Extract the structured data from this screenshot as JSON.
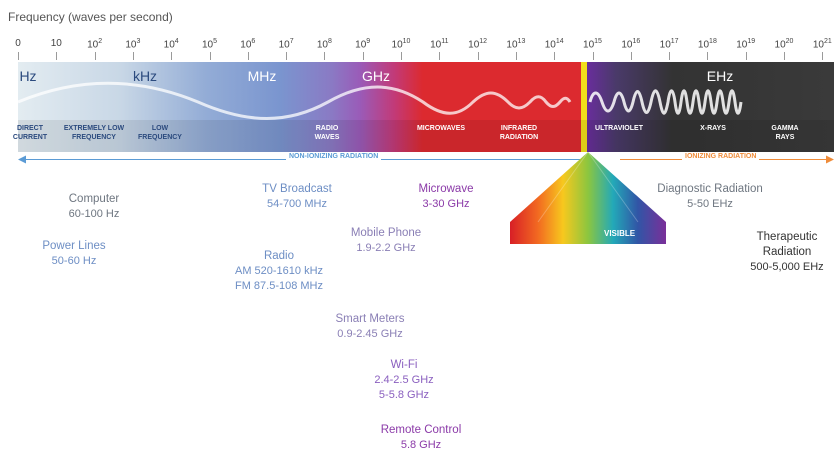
{
  "header": {
    "title": "Frequency (waves per second)"
  },
  "ticks": [
    {
      "base": "0",
      "exp": ""
    },
    {
      "base": "10",
      "exp": ""
    },
    {
      "base": "10",
      "exp": "2"
    },
    {
      "base": "10",
      "exp": "3"
    },
    {
      "base": "10",
      "exp": "4"
    },
    {
      "base": "10",
      "exp": "5"
    },
    {
      "base": "10",
      "exp": "6"
    },
    {
      "base": "10",
      "exp": "7"
    },
    {
      "base": "10",
      "exp": "8"
    },
    {
      "base": "10",
      "exp": "9"
    },
    {
      "base": "10",
      "exp": "10"
    },
    {
      "base": "10",
      "exp": "11"
    },
    {
      "base": "10",
      "exp": "12"
    },
    {
      "base": "10",
      "exp": "13"
    },
    {
      "base": "10",
      "exp": "14"
    },
    {
      "base": "10",
      "exp": "15"
    },
    {
      "base": "10",
      "exp": "16"
    },
    {
      "base": "10",
      "exp": "17"
    },
    {
      "base": "10",
      "exp": "18"
    },
    {
      "base": "10",
      "exp": "19"
    },
    {
      "base": "10",
      "exp": "20"
    },
    {
      "base": "10",
      "exp": "21"
    }
  ],
  "units": [
    "Hz",
    "kHz",
    "MHz",
    "GHz",
    "EHz"
  ],
  "band_labels": {
    "direct_current": [
      "DIRECT",
      "CURRENT"
    ],
    "extremely_low": [
      "EXTREMELY LOW",
      "FREQUENCY"
    ],
    "low_frequency": [
      "LOW",
      "FREQUENCY"
    ],
    "radio_waves": [
      "RADIO",
      "WAVES"
    ],
    "microwaves": [
      "MICROWAVES"
    ],
    "infrared": [
      "INFRARED",
      "RADIATION"
    ],
    "ultraviolet": [
      "ULTRAVIOLET"
    ],
    "xrays": [
      "X-RAYS"
    ],
    "gamma": [
      "GAMMA",
      "RAYS"
    ],
    "visible": "VISIBLE"
  },
  "radiation": {
    "non_ionizing": "NON-IONIZING RADIATION",
    "ionizing": "IONIZING RADIATION"
  },
  "colors": {
    "nonion_band_start": "#e4edf2",
    "nonion_band_mid": "#6f8fc6",
    "microwave_purple": "#8a4fb3",
    "infrared_red": "#d8323f",
    "ionizing_dark": "#2e2e2e",
    "divider_yellow": "#f4e21c",
    "nonion_line": "#5b9bd5",
    "ion_line": "#ef8c3a",
    "blue_text": "#6d8ec4",
    "gray_text": "#6e7680",
    "purple_text": "#8b3aa8"
  },
  "sources": {
    "computer": {
      "name": "Computer",
      "range": "60-100 Hz"
    },
    "power_lines": {
      "name": "Power Lines",
      "range": "50-60 Hz"
    },
    "tv": {
      "name": "TV Broadcast",
      "range": "54-700 MHz"
    },
    "radio": {
      "name": "Radio",
      "am": "AM 520-1610 kHz",
      "fm": "FM 87.5-108 MHz"
    },
    "microwave": {
      "name": "Microwave",
      "range": "3-30 GHz"
    },
    "mobile": {
      "name": "Mobile Phone",
      "range": "1.9-2.2 GHz"
    },
    "smart_meters": {
      "name": "Smart Meters",
      "range": "0.9-2.45 GHz"
    },
    "wifi": {
      "name": "Wi-Fi",
      "range1": "2.4-2.5 GHz",
      "range2": "5-5.8 GHz"
    },
    "remote": {
      "name": "Remote Control",
      "range": "5.8 GHz"
    },
    "diagnostic": {
      "name": "Diagnostic Radiation",
      "range": "5-50 EHz"
    },
    "therapeutic": {
      "name1": "Therapeutic",
      "name2": "Radiation",
      "range": "500-5,000 EHz"
    }
  }
}
